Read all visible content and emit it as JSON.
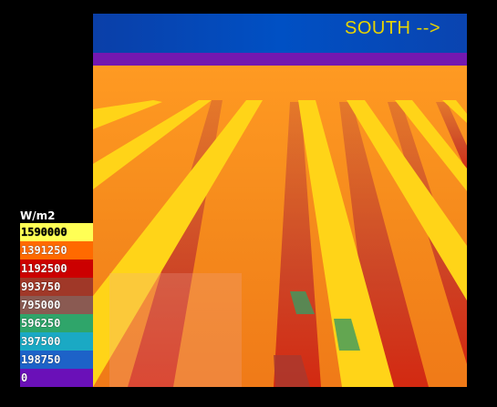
{
  "direction_label": "SOUTH -->",
  "legend": {
    "unit": "W/m2",
    "entries": [
      {
        "value": "1590000",
        "color": "#ffff55"
      },
      {
        "value": "1391250",
        "color": "#ff6a00"
      },
      {
        "value": "1192500",
        "color": "#cc0000"
      },
      {
        "value": "993750",
        "color": "#a03828"
      },
      {
        "value": "795000",
        "color": "#8a5a52"
      },
      {
        "value": "596250",
        "color": "#2fa56a"
      },
      {
        "value": "397500",
        "color": "#1aa9c4"
      },
      {
        "value": "198750",
        "color": "#1d62c8"
      },
      {
        "value": "0",
        "color": "#6a10b8"
      }
    ]
  },
  "colors": {
    "sky": "#0047b8",
    "horizon": "#7a1ab0",
    "ground": "#f79a1e",
    "panel": "#ffd21a",
    "shadow": "#c0402a"
  }
}
